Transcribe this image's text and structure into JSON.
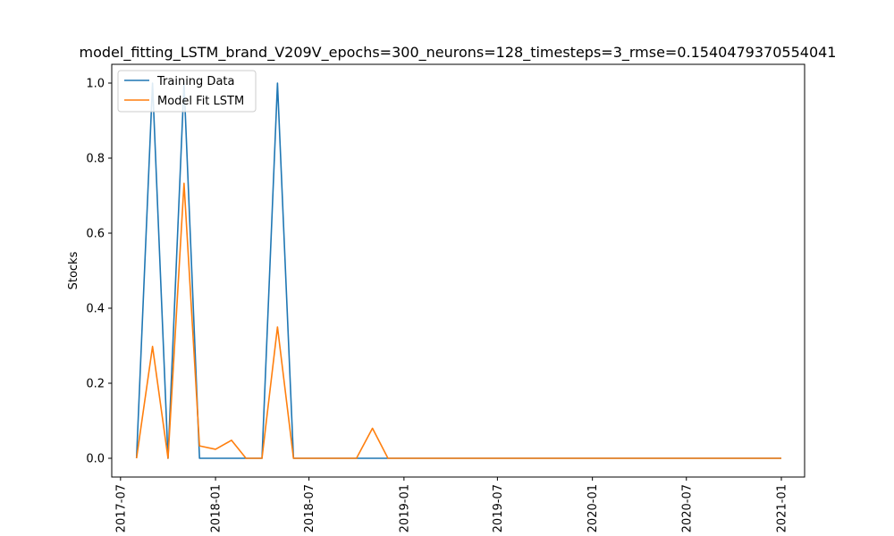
{
  "chart_data": {
    "type": "line",
    "title": "model_fitting_LSTM_brand_V209V_epochs=300_neurons=128_timesteps=3_rmse=0.1540479370554041",
    "xlabel": "",
    "ylabel": "Stocks",
    "x_ticks": [
      "2017-07",
      "2018-01",
      "2018-07",
      "2019-01",
      "2019-07",
      "2020-01",
      "2020-07",
      "2021-01"
    ],
    "y_ticks": [
      "0.0",
      "0.2",
      "0.4",
      "0.6",
      "0.8",
      "1.0"
    ],
    "ylim": [
      -0.05,
      1.05
    ],
    "xlim": [
      "2017-06-14",
      "2021-02-15"
    ],
    "grid": false,
    "legend_position": "top-left",
    "x": [
      "2017-08-01",
      "2017-09-01",
      "2017-10-01",
      "2017-11-01",
      "2017-12-01",
      "2018-01-01",
      "2018-02-01",
      "2018-03-01",
      "2018-04-01",
      "2018-05-01",
      "2018-06-01",
      "2018-07-01",
      "2018-08-01",
      "2018-09-01",
      "2018-10-01",
      "2018-11-01",
      "2018-12-01",
      "2019-01-01",
      "2019-02-01",
      "2019-03-01",
      "2019-04-01",
      "2019-05-01",
      "2019-06-01",
      "2019-07-01",
      "2019-08-01",
      "2019-09-01",
      "2019-10-01",
      "2019-11-01",
      "2019-12-01",
      "2020-01-01",
      "2020-02-01",
      "2020-03-01",
      "2020-04-01",
      "2020-05-01",
      "2020-06-01",
      "2020-07-01",
      "2020-08-01",
      "2020-09-01",
      "2020-10-01",
      "2020-11-01",
      "2020-12-01",
      "2021-01-01"
    ],
    "series": [
      {
        "name": "Training Data",
        "color": "#1f77b4",
        "values": [
          0,
          1,
          0,
          1,
          0,
          0,
          0,
          0,
          0,
          1,
          0,
          0,
          0,
          0,
          0,
          0,
          0,
          0,
          0,
          0,
          0,
          0,
          0,
          0,
          0,
          0,
          0,
          0,
          0,
          0,
          0,
          0,
          0,
          0,
          0,
          0,
          0,
          0,
          0,
          0,
          0,
          0
        ]
      },
      {
        "name": "Model Fit LSTM",
        "color": "#ff7f0e",
        "values": [
          0,
          0.298,
          0,
          0.733,
          0.033,
          0.024,
          0.048,
          0,
          0,
          0.35,
          0,
          0,
          0,
          0,
          0,
          0.08,
          0,
          0,
          0,
          0,
          0,
          0,
          0,
          0,
          0,
          0,
          0,
          0,
          0,
          0,
          0,
          0,
          0,
          0,
          0,
          0,
          0,
          0,
          0,
          0,
          0,
          0
        ]
      }
    ]
  }
}
